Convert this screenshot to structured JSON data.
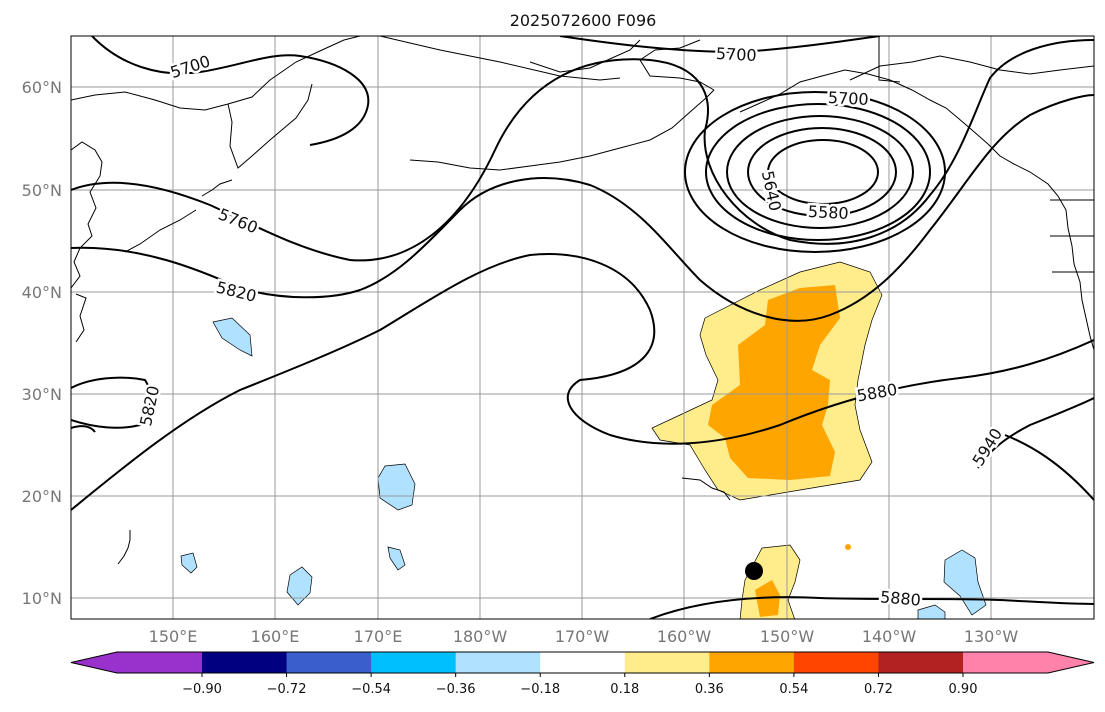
{
  "title": "2025072600 F096",
  "map": {
    "lon_labels": [
      "150°E",
      "160°E",
      "170°E",
      "180°W",
      "170°W",
      "160°W",
      "150°W",
      "140°W",
      "130°W"
    ],
    "lat_labels": [
      "60°N",
      "50°N",
      "40°N",
      "30°N",
      "20°N",
      "10°N"
    ],
    "grid": true
  },
  "contour_labels": [
    "5700",
    "5700",
    "5700",
    "5760",
    "5820",
    "5820",
    "5640",
    "5580",
    "5880",
    "5940",
    "5880"
  ],
  "colorbar": {
    "colors": [
      "#9932cc",
      "#000080",
      "#3a5fcd",
      "#00bfff",
      "#b0e2ff",
      "#ffffff",
      "#ffec8b",
      "#ffa500",
      "#ff4500",
      "#b22222",
      "#ff82ab"
    ],
    "tick_labels": [
      "−0.90",
      "−0.72",
      "−0.54",
      "−0.36",
      "−0.18",
      "0.18",
      "0.36",
      "0.54",
      "0.72",
      "0.90"
    ]
  },
  "shading_colors": {
    "light_yellow": "#ffec8b",
    "orange": "#ffa500",
    "light_blue": "#b0e2ff"
  }
}
